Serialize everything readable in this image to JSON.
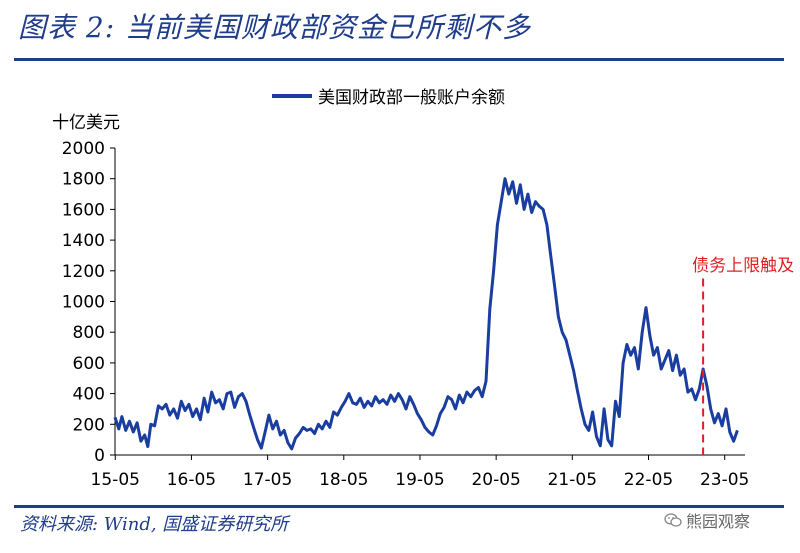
{
  "header": {
    "figure_title": "图表 2:  当前美国财政部资金已所剩不多"
  },
  "footer": {
    "source": "资料来源:  Wind,  国盛证券研究所",
    "watermark": "熊园观察"
  },
  "icons": {
    "watermark_icon": "wechat-icon"
  },
  "colors": {
    "accent": "#1f3d8a",
    "series": "#1a3ea0",
    "annotation": "#e02020"
  },
  "chart_data": {
    "type": "line",
    "unit_label": "十亿美元",
    "legend": [
      "美国财政部一般账户余额"
    ],
    "legend_position": "top-center",
    "grid": false,
    "ylim": [
      0,
      2000
    ],
    "yticks": [
      0,
      200,
      400,
      600,
      800,
      1000,
      1200,
      1400,
      1600,
      1800,
      2000
    ],
    "xticks": [
      "15-05",
      "16-05",
      "17-05",
      "18-05",
      "19-05",
      "20-05",
      "21-05",
      "22-05",
      "23-05"
    ],
    "xlim_years": [
      2015.33,
      2023.6
    ],
    "annotation": {
      "label": "债务上限触及",
      "x": 2023.05,
      "style": "dashed-vertical"
    },
    "series": [
      {
        "name": "美国财政部一般账户余额",
        "points": [
          [
            2015.33,
            245
          ],
          [
            2015.38,
            170
          ],
          [
            2015.42,
            250
          ],
          [
            2015.47,
            160
          ],
          [
            2015.52,
            220
          ],
          [
            2015.57,
            150
          ],
          [
            2015.62,
            210
          ],
          [
            2015.67,
            90
          ],
          [
            2015.72,
            130
          ],
          [
            2015.76,
            55
          ],
          [
            2015.8,
            200
          ],
          [
            2015.85,
            190
          ],
          [
            2015.9,
            320
          ],
          [
            2015.95,
            300
          ],
          [
            2016.0,
            330
          ],
          [
            2016.05,
            260
          ],
          [
            2016.1,
            300
          ],
          [
            2016.15,
            240
          ],
          [
            2016.2,
            350
          ],
          [
            2016.25,
            290
          ],
          [
            2016.3,
            330
          ],
          [
            2016.35,
            250
          ],
          [
            2016.4,
            300
          ],
          [
            2016.45,
            230
          ],
          [
            2016.5,
            370
          ],
          [
            2016.55,
            280
          ],
          [
            2016.6,
            410
          ],
          [
            2016.65,
            340
          ],
          [
            2016.7,
            360
          ],
          [
            2016.75,
            300
          ],
          [
            2016.8,
            400
          ],
          [
            2016.85,
            410
          ],
          [
            2016.9,
            310
          ],
          [
            2016.95,
            380
          ],
          [
            2017.0,
            400
          ],
          [
            2017.05,
            350
          ],
          [
            2017.1,
            260
          ],
          [
            2017.15,
            180
          ],
          [
            2017.2,
            100
          ],
          [
            2017.25,
            45
          ],
          [
            2017.3,
            150
          ],
          [
            2017.35,
            260
          ],
          [
            2017.4,
            170
          ],
          [
            2017.45,
            220
          ],
          [
            2017.5,
            130
          ],
          [
            2017.55,
            160
          ],
          [
            2017.6,
            80
          ],
          [
            2017.65,
            40
          ],
          [
            2017.7,
            110
          ],
          [
            2017.75,
            140
          ],
          [
            2017.8,
            180
          ],
          [
            2017.85,
            160
          ],
          [
            2017.9,
            170
          ],
          [
            2017.95,
            140
          ],
          [
            2018.0,
            200
          ],
          [
            2018.05,
            170
          ],
          [
            2018.1,
            220
          ],
          [
            2018.15,
            180
          ],
          [
            2018.2,
            280
          ],
          [
            2018.25,
            260
          ],
          [
            2018.3,
            310
          ],
          [
            2018.35,
            350
          ],
          [
            2018.4,
            400
          ],
          [
            2018.45,
            340
          ],
          [
            2018.5,
            330
          ],
          [
            2018.55,
            370
          ],
          [
            2018.6,
            310
          ],
          [
            2018.65,
            350
          ],
          [
            2018.7,
            320
          ],
          [
            2018.75,
            380
          ],
          [
            2018.8,
            340
          ],
          [
            2018.85,
            360
          ],
          [
            2018.9,
            330
          ],
          [
            2018.95,
            390
          ],
          [
            2019.0,
            350
          ],
          [
            2019.05,
            400
          ],
          [
            2019.1,
            360
          ],
          [
            2019.15,
            300
          ],
          [
            2019.2,
            380
          ],
          [
            2019.25,
            330
          ],
          [
            2019.3,
            270
          ],
          [
            2019.35,
            230
          ],
          [
            2019.4,
            180
          ],
          [
            2019.45,
            150
          ],
          [
            2019.5,
            130
          ],
          [
            2019.55,
            190
          ],
          [
            2019.6,
            270
          ],
          [
            2019.65,
            310
          ],
          [
            2019.7,
            380
          ],
          [
            2019.75,
            360
          ],
          [
            2019.8,
            300
          ],
          [
            2019.85,
            390
          ],
          [
            2019.9,
            340
          ],
          [
            2019.95,
            410
          ],
          [
            2020.0,
            380
          ],
          [
            2020.05,
            420
          ],
          [
            2020.1,
            440
          ],
          [
            2020.15,
            380
          ],
          [
            2020.2,
            480
          ],
          [
            2020.25,
            950
          ],
          [
            2020.3,
            1200
          ],
          [
            2020.35,
            1500
          ],
          [
            2020.4,
            1650
          ],
          [
            2020.45,
            1800
          ],
          [
            2020.5,
            1700
          ],
          [
            2020.55,
            1780
          ],
          [
            2020.6,
            1640
          ],
          [
            2020.65,
            1760
          ],
          [
            2020.7,
            1600
          ],
          [
            2020.75,
            1700
          ],
          [
            2020.8,
            1580
          ],
          [
            2020.85,
            1650
          ],
          [
            2020.9,
            1620
          ],
          [
            2020.95,
            1600
          ],
          [
            2021.0,
            1500
          ],
          [
            2021.05,
            1300
          ],
          [
            2021.1,
            1100
          ],
          [
            2021.15,
            900
          ],
          [
            2021.2,
            800
          ],
          [
            2021.25,
            750
          ],
          [
            2021.3,
            650
          ],
          [
            2021.35,
            550
          ],
          [
            2021.4,
            420
          ],
          [
            2021.45,
            300
          ],
          [
            2021.5,
            200
          ],
          [
            2021.55,
            160
          ],
          [
            2021.6,
            280
          ],
          [
            2021.65,
            120
          ],
          [
            2021.7,
            60
          ],
          [
            2021.75,
            300
          ],
          [
            2021.8,
            100
          ],
          [
            2021.85,
            60
          ],
          [
            2021.9,
            350
          ],
          [
            2021.95,
            250
          ],
          [
            2022.0,
            600
          ],
          [
            2022.05,
            720
          ],
          [
            2022.1,
            650
          ],
          [
            2022.15,
            700
          ],
          [
            2022.2,
            560
          ],
          [
            2022.25,
            800
          ],
          [
            2022.3,
            960
          ],
          [
            2022.35,
            780
          ],
          [
            2022.4,
            650
          ],
          [
            2022.45,
            700
          ],
          [
            2022.5,
            560
          ],
          [
            2022.55,
            620
          ],
          [
            2022.6,
            680
          ],
          [
            2022.65,
            550
          ],
          [
            2022.7,
            650
          ],
          [
            2022.75,
            520
          ],
          [
            2022.8,
            560
          ],
          [
            2022.85,
            410
          ],
          [
            2022.9,
            430
          ],
          [
            2022.95,
            360
          ],
          [
            2023.0,
            430
          ],
          [
            2023.05,
            560
          ],
          [
            2023.1,
            450
          ],
          [
            2023.15,
            300
          ],
          [
            2023.2,
            210
          ],
          [
            2023.25,
            270
          ],
          [
            2023.3,
            190
          ],
          [
            2023.35,
            300
          ],
          [
            2023.4,
            150
          ],
          [
            2023.45,
            90
          ],
          [
            2023.5,
            160
          ]
        ]
      }
    ]
  }
}
